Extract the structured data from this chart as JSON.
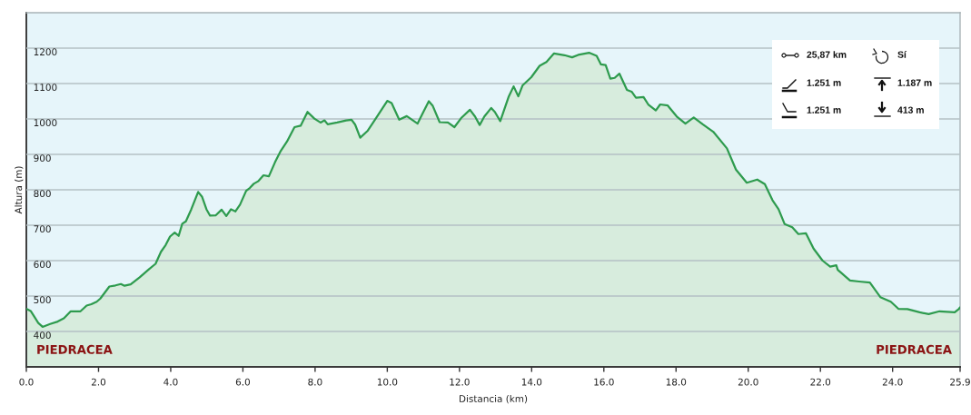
{
  "chart_data": {
    "type": "area",
    "xlabel": "Distancia (km)",
    "ylabel": "Altura (m)",
    "x": [
      0,
      0.12,
      0.2,
      0.33,
      0.45,
      0.66,
      0.87,
      1.04,
      1.23,
      1.5,
      1.67,
      1.8,
      1.95,
      2.05,
      2.3,
      2.47,
      2.62,
      2.72,
      2.89,
      3.14,
      3.4,
      3.58,
      3.73,
      3.86,
      3.98,
      4.11,
      4.22,
      4.32,
      4.42,
      4.57,
      4.76,
      4.87,
      4.99,
      5.09,
      5.25,
      5.41,
      5.54,
      5.67,
      5.79,
      5.92,
      6.09,
      6.19,
      6.3,
      6.42,
      6.57,
      6.72,
      6.89,
      7.05,
      7.22,
      7.43,
      7.6,
      7.79,
      7.98,
      8.15,
      8.26,
      8.35,
      8.61,
      8.86,
      9.01,
      9.11,
      9.25,
      9.45,
      9.7,
      10.0,
      10.12,
      10.33,
      10.54,
      10.84,
      11.0,
      11.15,
      11.26,
      11.45,
      11.68,
      11.86,
      12.06,
      12.29,
      12.43,
      12.56,
      12.69,
      12.88,
      12.98,
      13.13,
      13.36,
      13.5,
      13.63,
      13.75,
      13.99,
      14.22,
      14.41,
      14.62,
      14.91,
      15.12,
      15.29,
      15.59,
      15.8,
      15.92,
      16.05,
      16.18,
      16.3,
      16.43,
      16.64,
      16.77,
      16.89,
      17.1,
      17.23,
      17.44,
      17.56,
      17.77,
      18.02,
      18.26,
      18.49,
      18.74,
      19.03,
      19.41,
      19.66,
      19.96,
      20.25,
      20.46,
      20.67,
      20.84,
      21.01,
      21.22,
      21.39,
      21.6,
      21.81,
      22.06,
      22.27,
      22.44,
      22.48,
      22.82,
      23.07,
      23.37,
      23.66,
      23.95,
      24.16,
      24.41,
      24.75,
      25.0,
      25.3,
      25.72,
      25.84,
      25.87
    ],
    "series": [
      {
        "color": "#2e9b4e",
        "values": [
          464,
          458,
          445,
          424,
          413,
          421,
          428,
          437,
          457,
          457,
          473,
          477,
          484,
          493,
          527,
          530,
          534,
          529,
          533,
          553,
          576,
          591,
          625,
          644,
          668,
          679,
          670,
          704,
          711,
          745,
          794,
          780,
          745,
          727,
          728,
          744,
          726,
          745,
          739,
          758,
          797,
          805,
          817,
          824,
          841,
          838,
          878,
          910,
          936,
          977,
          981,
          1020,
          1001,
          990,
          996,
          985,
          990,
          996,
          998,
          984,
          947,
          966,
          1004,
          1051,
          1045,
          998,
          1008,
          987,
          1020,
          1050,
          1037,
          991,
          990,
          977,
          1004,
          1026,
          1007,
          983,
          1007,
          1031,
          1020,
          994,
          1062,
          1092,
          1064,
          1095,
          1118,
          1150,
          1161,
          1185,
          1180,
          1174,
          1181,
          1187,
          1178,
          1154,
          1152,
          1114,
          1116,
          1128,
          1082,
          1077,
          1060,
          1062,
          1041,
          1024,
          1041,
          1038,
          1007,
          987,
          1004,
          985,
          964,
          917,
          857,
          820,
          829,
          816,
          771,
          745,
          703,
          694,
          675,
          677,
          634,
          600,
          583,
          587,
          574,
          544,
          541,
          538,
          497,
          484,
          464,
          463,
          454,
          449,
          457,
          454,
          464,
          468
        ]
      }
    ],
    "xlim": [
      0,
      25.87
    ],
    "ylim": [
      300,
      1300
    ],
    "xticks": [
      {
        "value": 0,
        "label": "0.0"
      },
      {
        "value": 2,
        "label": "2.0"
      },
      {
        "value": 4,
        "label": "4.0"
      },
      {
        "value": 6,
        "label": "6.0"
      },
      {
        "value": 8,
        "label": "8.0"
      },
      {
        "value": 10,
        "label": "10.0"
      },
      {
        "value": 12,
        "label": "12.0"
      },
      {
        "value": 14,
        "label": "14.0"
      },
      {
        "value": 16,
        "label": "16.0"
      },
      {
        "value": 18,
        "label": "18.0"
      },
      {
        "value": 20,
        "label": "20.0"
      },
      {
        "value": 22,
        "label": "22.0"
      },
      {
        "value": 24,
        "label": "24.0"
      },
      {
        "value": 25.87,
        "label": "25.9"
      }
    ],
    "yticks": [
      400,
      500,
      600,
      700,
      800,
      900,
      1000,
      1100,
      1200
    ],
    "grid": "y",
    "annotations": [
      "PIEDRACEA",
      "PIEDRACEA",
      "25,87 km",
      "Sí",
      "1.251 m",
      "1.187 m",
      "1.251 m",
      "413 m"
    ]
  }
}
